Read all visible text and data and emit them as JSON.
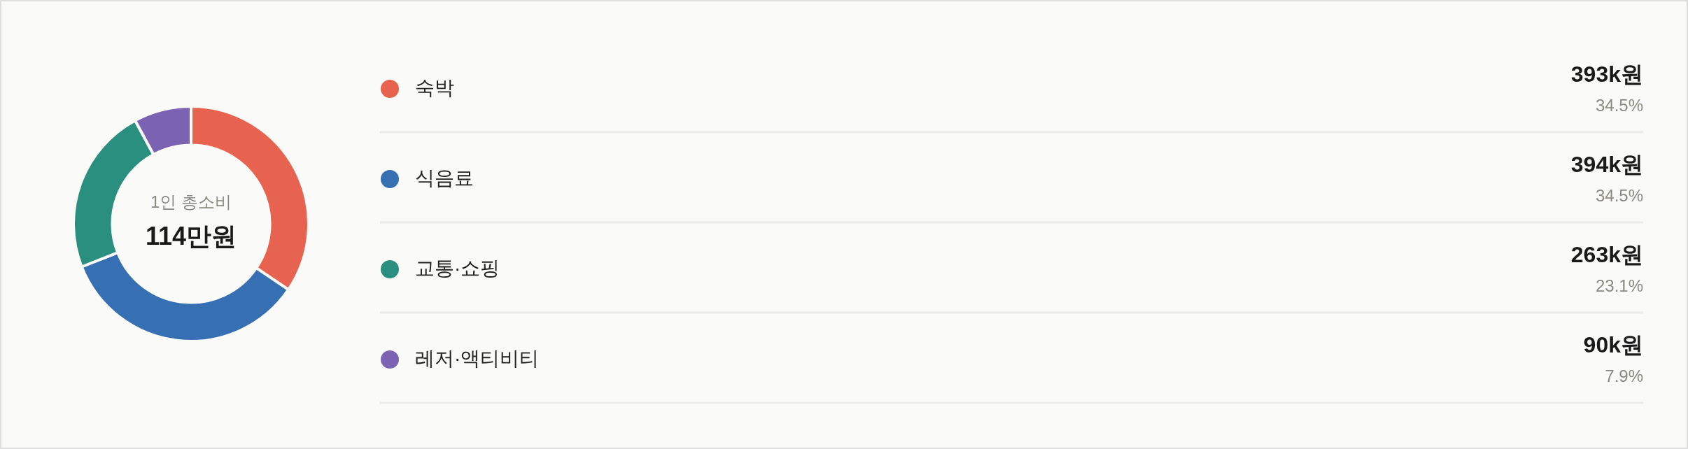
{
  "chart_data": {
    "type": "donut",
    "title": "1인 총소비",
    "subtitle": "114만원",
    "categories": [
      "숙박",
      "식음료",
      "교통·쇼핑",
      "레저·액티비티"
    ],
    "values": [
      393,
      394,
      263,
      90
    ],
    "colors": [
      "#e8634f",
      "#3670b3",
      "#2b8f80",
      "#7c62b3"
    ],
    "value_labels": [
      "393k원",
      "394k원",
      "263k원",
      "90k원"
    ],
    "annotations": [
      "34.5%",
      "34.5%",
      "23.1%",
      "7.9%"
    ],
    "legend": "right"
  }
}
